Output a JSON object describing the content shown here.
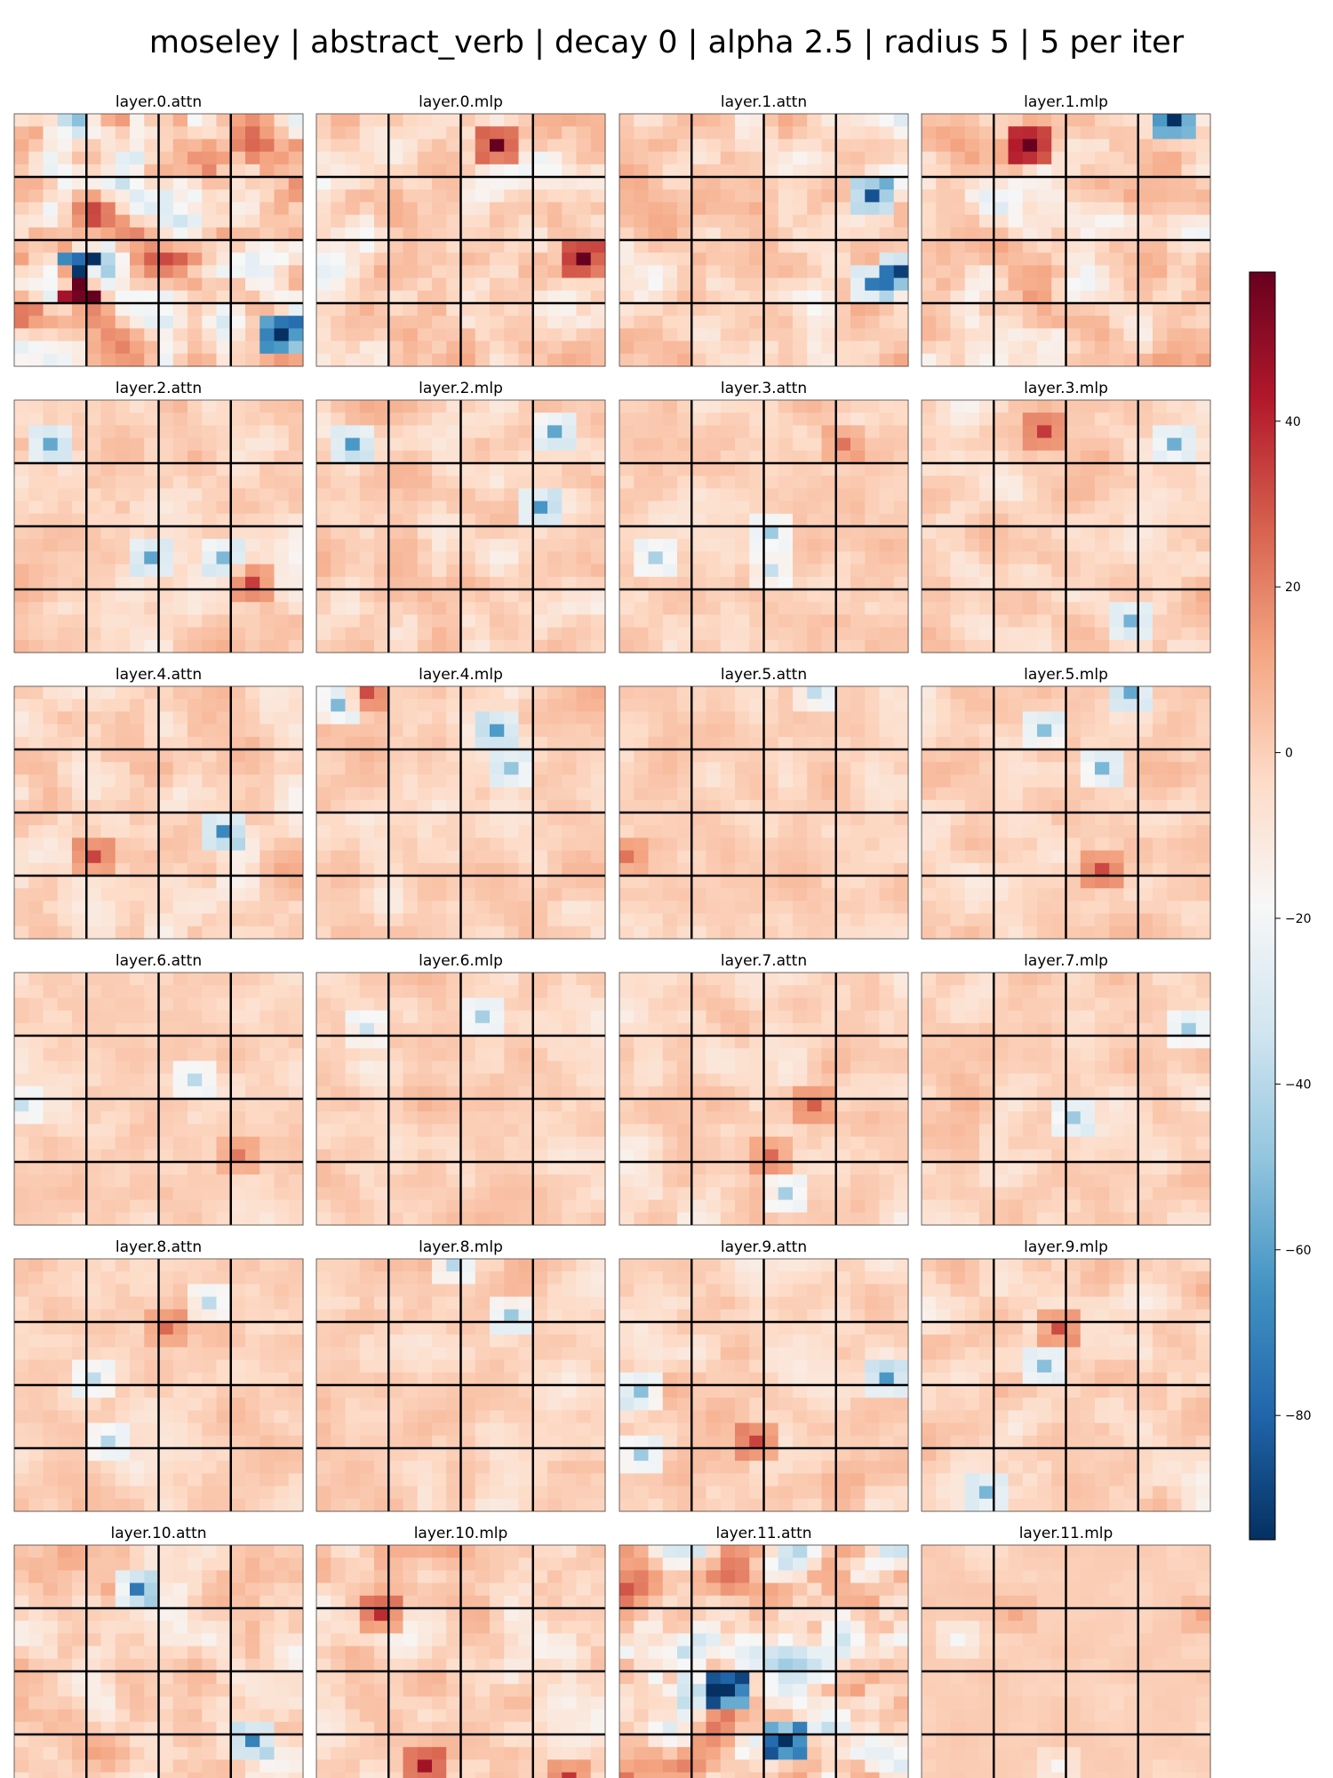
{
  "title": "moseley | abstract_verb | decay 0 | alpha 2.5 | radius 5 | 5 per iter",
  "chart_data": {
    "type": "heatmap",
    "title": "moseley | abstract_verb | decay 0 | alpha 2.5 | radius 5 | 5 per iter",
    "grid_rows": 6,
    "grid_cols": 4,
    "cells_per_side": 20,
    "panel_divisions_per_side": 4,
    "panels": [
      {
        "name": "layer.0.attn",
        "intensity": 1.0
      },
      {
        "name": "layer.0.mlp",
        "intensity": 0.55
      },
      {
        "name": "layer.1.attn",
        "intensity": 0.45
      },
      {
        "name": "layer.1.mlp",
        "intensity": 0.6
      },
      {
        "name": "layer.2.attn",
        "intensity": 0.3
      },
      {
        "name": "layer.2.mlp",
        "intensity": 0.35
      },
      {
        "name": "layer.3.attn",
        "intensity": 0.25
      },
      {
        "name": "layer.3.mlp",
        "intensity": 0.3
      },
      {
        "name": "layer.4.attn",
        "intensity": 0.35
      },
      {
        "name": "layer.4.mlp",
        "intensity": 0.28
      },
      {
        "name": "layer.5.attn",
        "intensity": 0.22
      },
      {
        "name": "layer.5.mlp",
        "intensity": 0.28
      },
      {
        "name": "layer.6.attn",
        "intensity": 0.22
      },
      {
        "name": "layer.6.mlp",
        "intensity": 0.24
      },
      {
        "name": "layer.7.attn",
        "intensity": 0.26
      },
      {
        "name": "layer.7.mlp",
        "intensity": 0.26
      },
      {
        "name": "layer.8.attn",
        "intensity": 0.22
      },
      {
        "name": "layer.8.mlp",
        "intensity": 0.25
      },
      {
        "name": "layer.9.attn",
        "intensity": 0.3
      },
      {
        "name": "layer.9.mlp",
        "intensity": 0.32
      },
      {
        "name": "layer.10.attn",
        "intensity": 0.42
      },
      {
        "name": "layer.10.mlp",
        "intensity": 0.38
      },
      {
        "name": "layer.11.attn",
        "intensity": 0.95
      },
      {
        "name": "layer.11.mlp",
        "intensity": 0.1
      }
    ],
    "colormap": "RdBu_r",
    "colorbar": {
      "min": -95,
      "max": 58,
      "ticks": [
        40,
        20,
        0,
        -20,
        -40,
        -60,
        -80
      ],
      "tick_labels": [
        "40",
        "20",
        "0",
        "−20",
        "−40",
        "−60",
        "−80"
      ]
    },
    "grid": true,
    "legend": "colorbar-right"
  }
}
